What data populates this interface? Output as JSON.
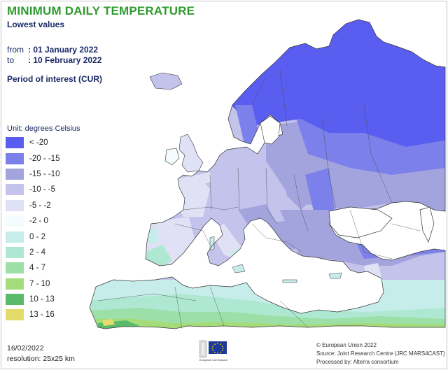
{
  "title": "MINIMUM DAILY TEMPERATURE",
  "subtitle": "Lowest values",
  "period": {
    "from_label": "from",
    "from_value": ": 01 January 2022",
    "to_label": "to",
    "to_value": ": 10 February 2022"
  },
  "period_of_interest": "Period of interest (CUR)",
  "unit_label": "Unit: degrees Celsius",
  "legend": [
    {
      "label": "< -20",
      "color": "#5a5ef0"
    },
    {
      "label": "-20 - -15",
      "color": "#7c80ea"
    },
    {
      "label": "-15 - -10",
      "color": "#a3a4de"
    },
    {
      "label": "-10 - -5",
      "color": "#c3c3ec"
    },
    {
      "label": "-5 - -2",
      "color": "#e1e1f6"
    },
    {
      "label": "-2 - 0",
      "color": "#f3fbfd"
    },
    {
      "label": "0 - 2",
      "color": "#c7edea"
    },
    {
      "label": "2 - 4",
      "color": "#aee8d3"
    },
    {
      "label": "4 - 7",
      "color": "#9ce0a8"
    },
    {
      "label": "7 - 10",
      "color": "#a4dc7a"
    },
    {
      "label": "10 - 13",
      "color": "#5bba6a"
    },
    {
      "label": "13 - 16",
      "color": "#e4dc6a"
    }
  ],
  "footer": {
    "date": "16/02/2022",
    "resolution": "resolution: 25x25 km",
    "copyright": "© European Union 2022",
    "source": "Source: Joint Research Centre (JRC MARS4CAST)",
    "processed": "Processed by: Alterra consortium",
    "logo_caption": "European Commission"
  },
  "colors": {
    "title": "#2e9a2e",
    "text": "#1a2a66",
    "borders": "#333333",
    "sea": "#ffffff"
  }
}
